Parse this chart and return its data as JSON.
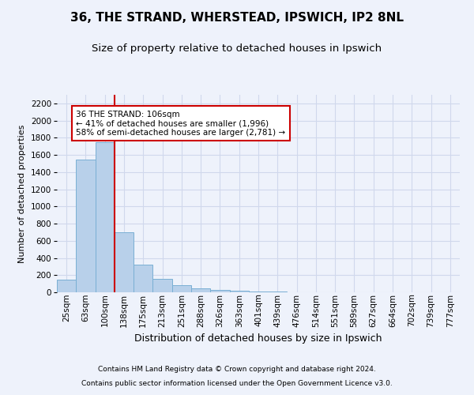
{
  "title1": "36, THE STRAND, WHERSTEAD, IPSWICH, IP2 8NL",
  "title2": "Size of property relative to detached houses in Ipswich",
  "xlabel": "Distribution of detached houses by size in Ipswich",
  "ylabel": "Number of detached properties",
  "footnote1": "Contains HM Land Registry data © Crown copyright and database right 2024.",
  "footnote2": "Contains public sector information licensed under the Open Government Licence v3.0.",
  "bar_labels": [
    "25sqm",
    "63sqm",
    "100sqm",
    "138sqm",
    "175sqm",
    "213sqm",
    "251sqm",
    "288sqm",
    "326sqm",
    "363sqm",
    "401sqm",
    "439sqm",
    "476sqm",
    "514sqm",
    "551sqm",
    "589sqm",
    "627sqm",
    "664sqm",
    "702sqm",
    "739sqm",
    "777sqm"
  ],
  "bar_values": [
    150,
    1550,
    1750,
    700,
    320,
    160,
    80,
    45,
    25,
    20,
    10,
    5,
    3,
    2,
    2,
    1,
    1,
    0,
    0,
    0,
    0
  ],
  "bar_color": "#b8d0ea",
  "bar_edge_color": "#7aafd4",
  "vertical_line_x": 2.5,
  "vertical_line_color": "#cc0000",
  "annotation_text": "36 THE STRAND: 106sqm\n← 41% of detached houses are smaller (1,996)\n58% of semi-detached houses are larger (2,781) →",
  "annotation_box_color": "#ffffff",
  "annotation_box_edge": "#cc0000",
  "ylim": [
    0,
    2300
  ],
  "yticks": [
    0,
    200,
    400,
    600,
    800,
    1000,
    1200,
    1400,
    1600,
    1800,
    2000,
    2200
  ],
  "grid_color": "#d0d8ec",
  "bg_color": "#eef2fb",
  "title1_fontsize": 11,
  "title2_fontsize": 9.5,
  "ylabel_fontsize": 8,
  "xlabel_fontsize": 9,
  "tick_labelsize": 7.5,
  "annot_fontsize": 7.5,
  "footnote_fontsize": 6.5
}
